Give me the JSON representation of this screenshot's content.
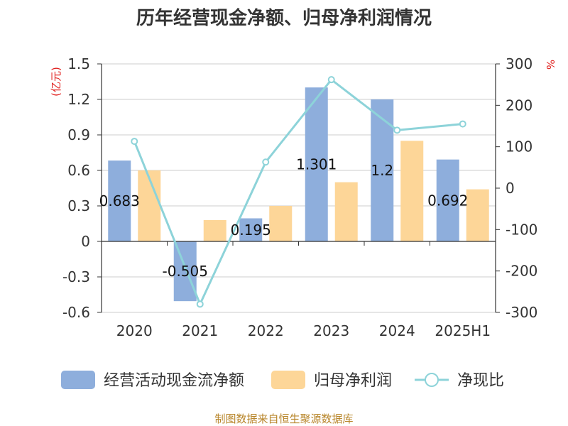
{
  "chart_data": {
    "type": "bar",
    "title": "历年经营现金净额、归母净利润情况",
    "categories": [
      "2020",
      "2021",
      "2022",
      "2023",
      "2024",
      "2025H1"
    ],
    "left_axis": {
      "unit": "(亿元)",
      "ylim": [
        -0.6,
        1.5
      ],
      "ticks": [
        "1.5",
        "1.2",
        "0.9",
        "0.6",
        "0.3",
        "0",
        "-0.3",
        "-0.6"
      ]
    },
    "right_axis": {
      "unit": "%",
      "ylim": [
        -300,
        300
      ],
      "ticks": [
        "300",
        "200",
        "100",
        "0",
        "-100",
        "-200",
        "-300"
      ]
    },
    "grid": true,
    "legend_position": "bottom",
    "series": [
      {
        "name": "经营活动现金流净额",
        "kind": "bar",
        "axis": "left",
        "color": "#8eaedc",
        "values": [
          0.683,
          -0.505,
          0.195,
          1.301,
          1.2,
          0.692
        ],
        "labels": [
          "0.683",
          "-0.505",
          "0.195",
          "1.301",
          "1.2",
          "0.692"
        ]
      },
      {
        "name": "归母净利润",
        "kind": "bar",
        "axis": "left",
        "color": "#fdd698",
        "values": [
          0.6,
          0.18,
          0.3,
          0.5,
          0.85,
          0.44
        ]
      },
      {
        "name": "净现比",
        "kind": "line",
        "axis": "right",
        "color": "#8dd3d9",
        "values": [
          113,
          -280,
          63,
          262,
          140,
          155
        ]
      }
    ]
  },
  "footer": {
    "source": "制图数据来自恒生聚源数据库"
  }
}
